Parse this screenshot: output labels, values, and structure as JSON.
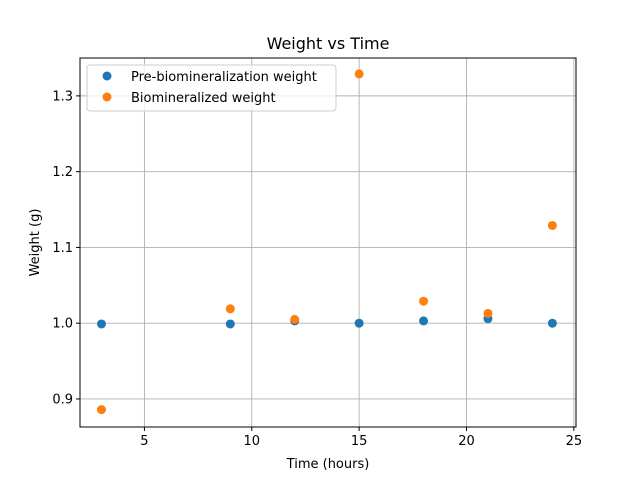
{
  "chart_data": {
    "type": "scatter",
    "title": "Weight vs Time",
    "xlabel": "Time (hours)",
    "ylabel": "Weight (g)",
    "xlim": [
      2.0,
      25.1
    ],
    "ylim": [
      0.863,
      1.35
    ],
    "xticks": [
      5,
      10,
      15,
      20,
      25
    ],
    "yticks": [
      0.9,
      1.0,
      1.1,
      1.2,
      1.3
    ],
    "xtick_labels": [
      "5",
      "10",
      "15",
      "20",
      "25"
    ],
    "ytick_labels": [
      "0.9",
      "1.0",
      "1.1",
      "1.2",
      "1.3"
    ],
    "grid": true,
    "legend_position": "top-left",
    "series": [
      {
        "name": "Pre-biomineralization weight",
        "color": "#1f77b4",
        "x": [
          3,
          9,
          12,
          15,
          18,
          21,
          24
        ],
        "y": [
          0.999,
          0.999,
          1.003,
          1.0,
          1.003,
          1.006,
          1.0
        ]
      },
      {
        "name": "Biomineralized weight",
        "color": "#ff7f0e",
        "x": [
          3,
          9,
          12,
          15,
          18,
          21,
          24
        ],
        "y": [
          0.886,
          1.019,
          1.005,
          1.329,
          1.029,
          1.013,
          1.129
        ]
      }
    ]
  }
}
